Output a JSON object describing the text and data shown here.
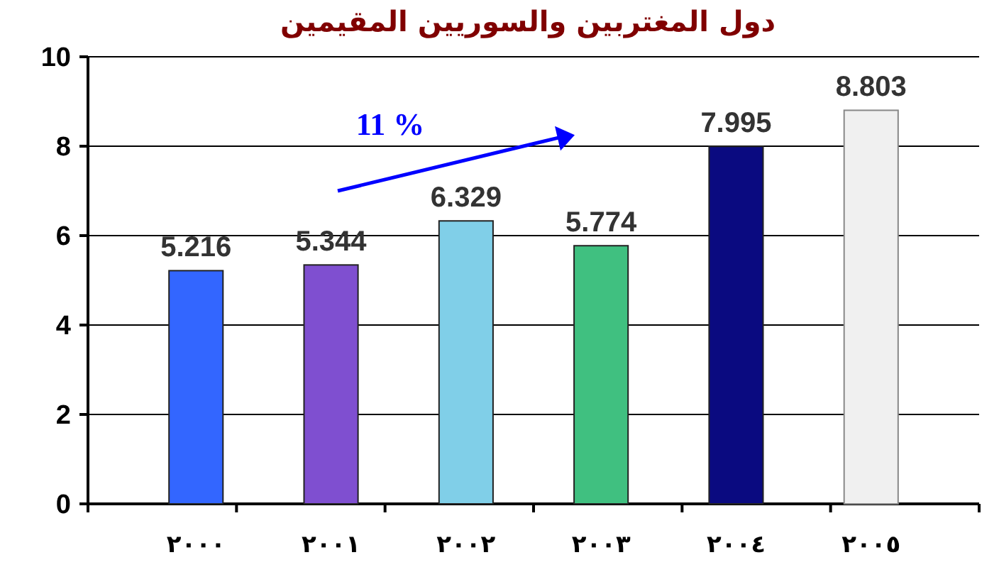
{
  "chart_data": {
    "type": "bar",
    "title": "دول المغتربين والسوريين المقيمين",
    "categories": [
      "٢٠٠٠",
      "٢٠٠١",
      "٢٠٠٢",
      "٢٠٠٣",
      "٢٠٠٤",
      "٢٠٠٥"
    ],
    "values": [
      5.216,
      5.344,
      6.329,
      5.774,
      7.995,
      8.803
    ],
    "colors": [
      "#3366ff",
      "#7f4fd0",
      "#80cfe8",
      "#40c080",
      "#0a0a80",
      "#f0f0f0"
    ],
    "ylim": [
      0,
      10
    ],
    "yticks": [
      0,
      2,
      4,
      6,
      8,
      10
    ],
    "grid": "y",
    "data_labels": true,
    "annotations": [
      "11 %"
    ]
  }
}
